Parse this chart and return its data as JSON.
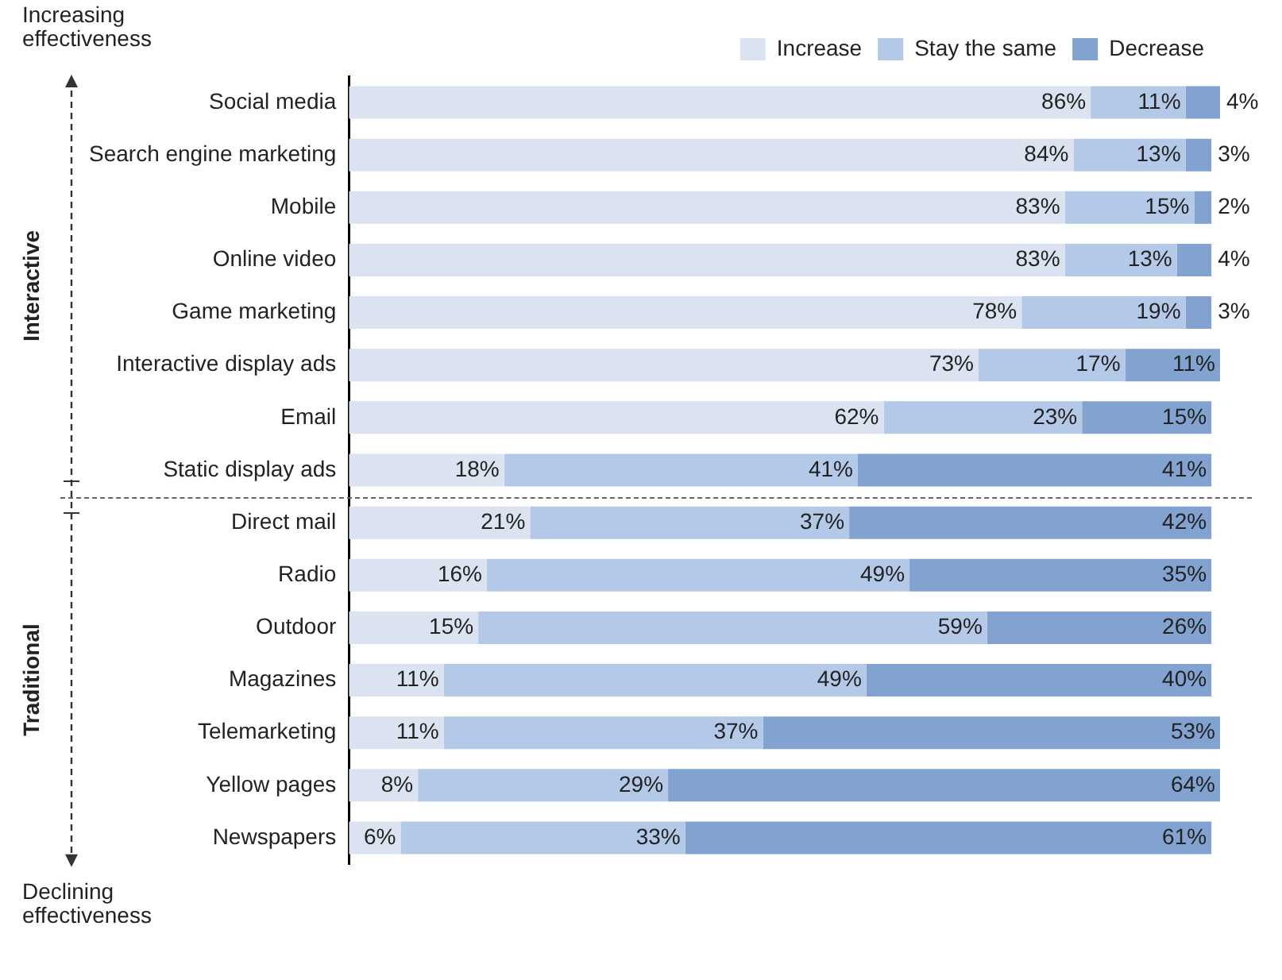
{
  "chart_data": {
    "type": "bar",
    "orientation": "horizontal",
    "stacked": true,
    "legend": "top right",
    "grid": false,
    "categories": [
      "Social media",
      "Search engine marketing",
      "Mobile",
      "Online video",
      "Game marketing",
      "Interactive display ads",
      "Email",
      "Static display ads",
      "Direct mail",
      "Radio",
      "Outdoor",
      "Magazines",
      "Telemarketing",
      "Yellow pages",
      "Newspapers"
    ],
    "series": [
      {
        "name": "Increase",
        "color": "#dae3ef",
        "values": [
          86,
          84,
          83,
          83,
          78,
          73,
          62,
          18,
          21,
          16,
          15,
          11,
          11,
          8,
          6
        ],
        "value_labels": [
          "86%",
          "84%",
          "83%",
          "83%",
          "78%",
          "73%",
          "62%",
          "18%",
          "21%",
          "16%",
          "15%",
          "11%",
          "11%",
          "8%",
          "6%"
        ]
      },
      {
        "name": "Stay the same",
        "color": "#b4c9e8",
        "values": [
          11,
          13,
          15,
          13,
          19,
          17,
          23,
          41,
          37,
          49,
          59,
          49,
          37,
          29,
          33
        ],
        "value_labels": [
          "11%",
          "13%",
          "15%",
          "13%",
          "19%",
          "17%",
          "23%",
          "41%",
          "37%",
          "49%",
          "59%",
          "49%",
          "37%",
          "29%",
          "33%"
        ]
      },
      {
        "name": "Decrease",
        "color": "#82a3d0",
        "values": [
          4,
          3,
          2,
          4,
          3,
          11,
          15,
          41,
          42,
          35,
          26,
          40,
          53,
          64,
          61
        ],
        "value_labels": [
          "4%",
          "3%",
          "2%",
          "4%",
          "3%",
          "11%",
          "15%",
          "41%",
          "42%",
          "35%",
          "26%",
          "40%",
          "53%",
          "64%",
          "61%"
        ]
      }
    ],
    "annotations": [
      "Increasing effectiveness",
      "Declining effectiveness",
      "Interactive",
      "Traditional"
    ]
  }
}
